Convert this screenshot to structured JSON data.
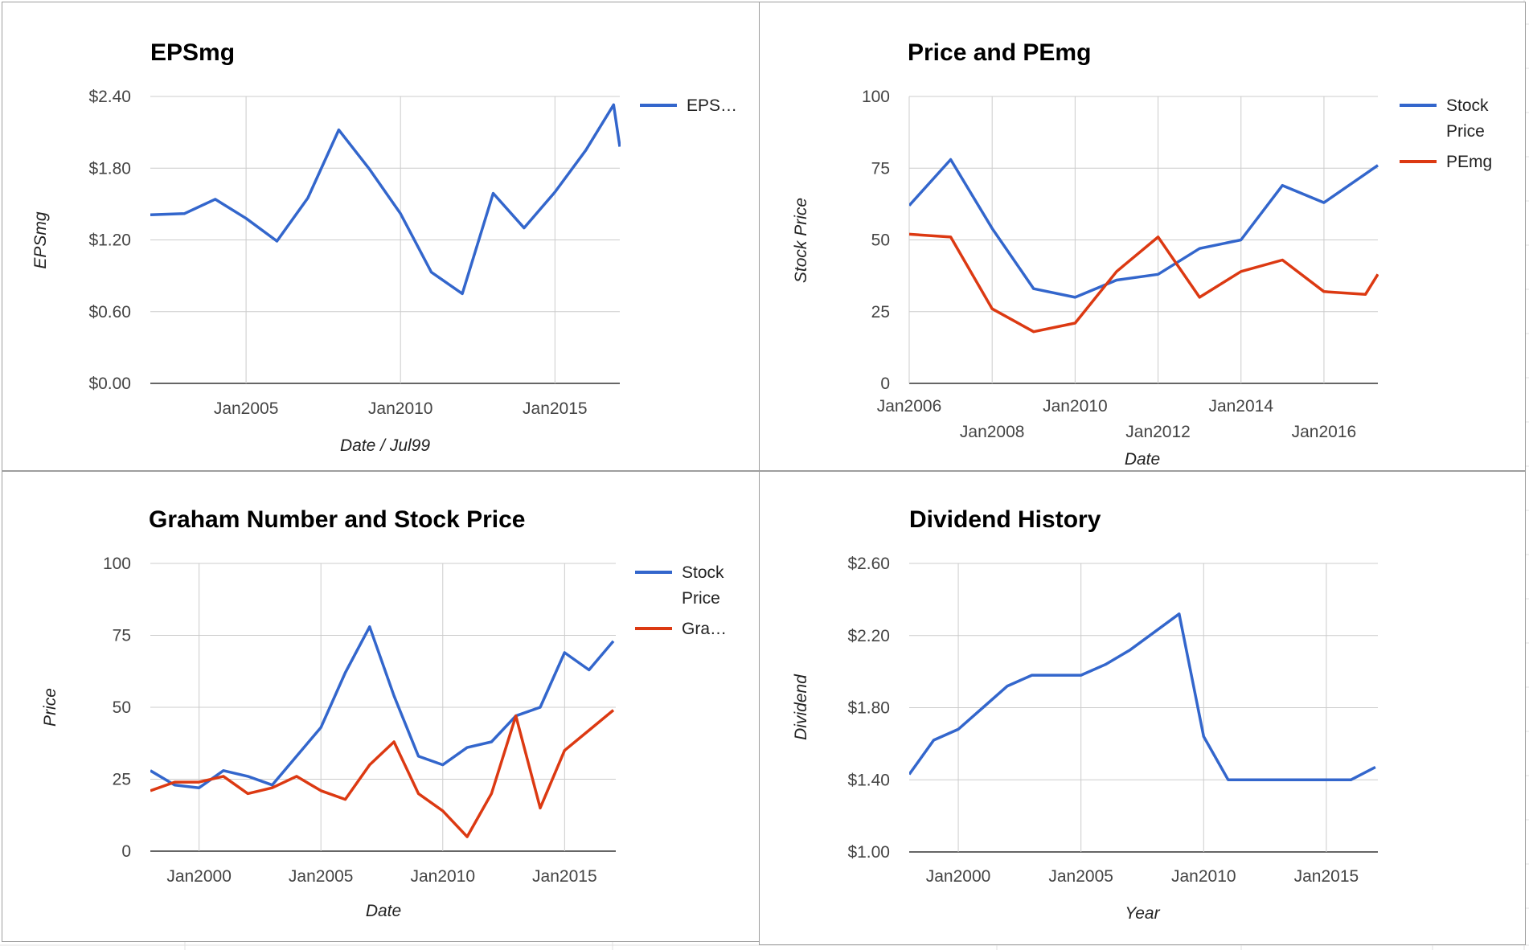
{
  "chart_data": [
    {
      "type": "line",
      "title": "EPSmg",
      "xlabel": "Date / Jul99",
      "ylabel": "EPSmg",
      "y_tick_labels": [
        "$0.00",
        "$0.60",
        "$1.20",
        "$1.80",
        "$2.40"
      ],
      "y_ticks": [
        0,
        0.6,
        1.2,
        1.8,
        2.4
      ],
      "ylim": [
        0,
        2.4
      ],
      "x_tick_labels": [
        "Jan2005",
        "Jan2010",
        "Jan2015"
      ],
      "x_ticks": [
        2005,
        2010,
        2015
      ],
      "xlim": [
        2001.9,
        2017.1
      ],
      "legend_position": "right",
      "grid": true,
      "series": [
        {
          "name": "EPS…",
          "color": "#3366cc",
          "x": [
            2001.9,
            2003,
            2004,
            2005,
            2006,
            2007,
            2008,
            2009,
            2010,
            2011,
            2012,
            2013,
            2014,
            2015,
            2016,
            2016.9,
            2017.1
          ],
          "values": [
            1.41,
            1.42,
            1.54,
            1.38,
            1.19,
            1.55,
            2.12,
            1.79,
            1.42,
            0.93,
            0.75,
            1.59,
            1.3,
            1.6,
            1.95,
            2.33,
            1.98
          ]
        }
      ]
    },
    {
      "type": "line",
      "title": "Price and PEmg",
      "xlabel": "Date",
      "ylabel": "Stock Price",
      "y_tick_labels": [
        "0",
        "25",
        "50",
        "75",
        "100"
      ],
      "y_ticks": [
        0,
        25,
        50,
        75,
        100
      ],
      "ylim": [
        0,
        100
      ],
      "x_tick_labels": [
        "Jan2006",
        "Jan2008",
        "Jan2010",
        "Jan2012",
        "Jan2014",
        "Jan2016"
      ],
      "x_ticks": [
        2006,
        2008,
        2010,
        2012,
        2014,
        2016
      ],
      "xlim": [
        2006,
        2017.3
      ],
      "legend_position": "right",
      "grid": true,
      "series": [
        {
          "name": "Stock Price",
          "color": "#3366cc",
          "x": [
            2006,
            2007,
            2008,
            2009,
            2010,
            2011,
            2012,
            2013,
            2014,
            2015,
            2016,
            2017,
            2017.3
          ],
          "values": [
            62,
            78,
            54,
            33,
            30,
            36,
            38,
            47,
            50,
            69,
            63,
            73,
            76
          ]
        },
        {
          "name": "PEmg",
          "color": "#dc3912",
          "x": [
            2006,
            2007,
            2008,
            2009,
            2010,
            2011,
            2012,
            2013,
            2014,
            2015,
            2016,
            2017,
            2017.3
          ],
          "values": [
            52,
            51,
            26,
            18,
            21,
            39,
            51,
            30,
            39,
            43,
            32,
            31,
            38
          ]
        }
      ]
    },
    {
      "type": "line",
      "title": "Graham Number and Stock Price",
      "xlabel": "Date",
      "ylabel": "Price",
      "y_tick_labels": [
        "0",
        "25",
        "50",
        "75",
        "100"
      ],
      "y_ticks": [
        0,
        25,
        50,
        75,
        100
      ],
      "ylim": [
        0,
        100
      ],
      "x_tick_labels": [
        "Jan2000",
        "Jan2005",
        "Jan2010",
        "Jan2015"
      ],
      "x_ticks": [
        2000,
        2005,
        2010,
        2015
      ],
      "xlim": [
        1998,
        2017.1
      ],
      "legend_position": "right",
      "grid": true,
      "series": [
        {
          "name": "Stock Price",
          "color": "#3366cc",
          "x": [
            1998,
            1999,
            2000,
            2001,
            2002,
            2003,
            2004,
            2005,
            2006,
            2007,
            2008,
            2009,
            2010,
            2011,
            2012,
            2013,
            2014,
            2015,
            2016,
            2017
          ],
          "values": [
            28,
            23,
            22,
            28,
            26,
            23,
            33,
            43,
            62,
            78,
            54,
            33,
            30,
            36,
            38,
            47,
            50,
            69,
            63,
            73
          ]
        },
        {
          "name": "Gra…",
          "color": "#dc3912",
          "x": [
            1998,
            1999,
            2000,
            2001,
            2002,
            2003,
            2004,
            2005,
            2006,
            2007,
            2008,
            2009,
            2010,
            2011,
            2012,
            2013,
            2014,
            2015,
            2016,
            2017
          ],
          "values": [
            21,
            24,
            24,
            26,
            20,
            22,
            26,
            21,
            18,
            30,
            38,
            20,
            14,
            5,
            20,
            47,
            15,
            35,
            42,
            49
          ]
        }
      ]
    },
    {
      "type": "line",
      "title": "Dividend History",
      "xlabel": "Year",
      "ylabel": "Dividend",
      "y_tick_labels": [
        "$1.00",
        "$1.40",
        "$1.80",
        "$2.20",
        "$2.60"
      ],
      "y_ticks": [
        1.0,
        1.4,
        1.8,
        2.2,
        2.6
      ],
      "ylim": [
        1.0,
        2.6
      ],
      "x_tick_labels": [
        "Jan2000",
        "Jan2005",
        "Jan2010",
        "Jan2015"
      ],
      "x_ticks": [
        2000,
        2005,
        2010,
        2015
      ],
      "xlim": [
        1998,
        2017.1
      ],
      "legend_position": "none",
      "grid": true,
      "series": [
        {
          "color": "#3366cc",
          "x": [
            1998,
            1999,
            2000,
            2001,
            2002,
            2003,
            2004,
            2005,
            2006,
            2007,
            2008,
            2009,
            2010,
            2011,
            2012,
            2013,
            2014,
            2015,
            2016,
            2017
          ],
          "values": [
            1.43,
            1.62,
            1.68,
            1.8,
            1.92,
            1.98,
            1.98,
            1.98,
            2.04,
            2.12,
            2.22,
            2.32,
            1.64,
            1.4,
            1.4,
            1.4,
            1.4,
            1.4,
            1.4,
            1.47
          ]
        }
      ]
    }
  ]
}
